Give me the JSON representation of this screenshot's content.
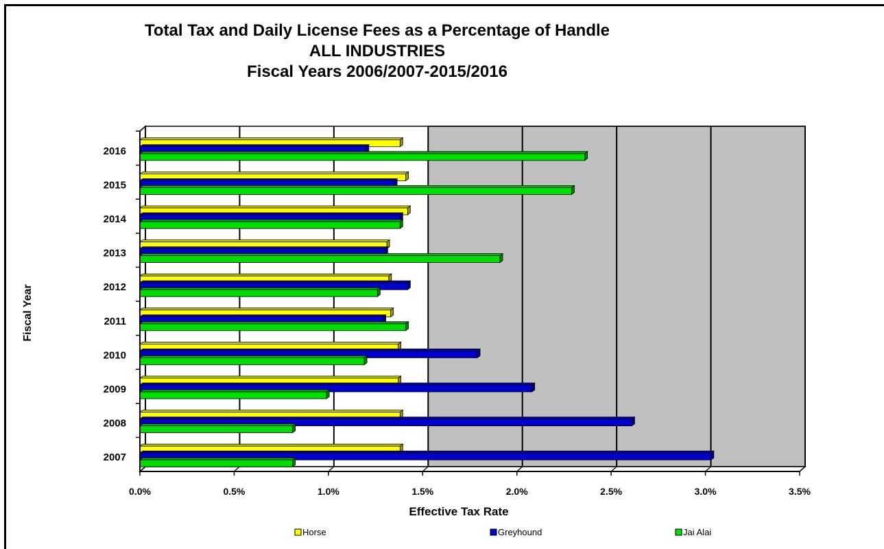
{
  "chart_data": {
    "type": "bar",
    "orientation": "horizontal",
    "style": "3d",
    "title": [
      "Total Tax and Daily License Fees as a Percentage of Handle",
      "ALL INDUSTRIES",
      "Fiscal Years 2006/2007-2015/2016"
    ],
    "xlabel": "Effective Tax Rate",
    "ylabel": "Fiscal Year",
    "xlim": [
      0,
      3.5
    ],
    "xticks": [
      "0.0%",
      "0.5%",
      "1.0%",
      "1.5%",
      "2.0%",
      "2.5%",
      "3.0%",
      "3.5%"
    ],
    "tick_values": [
      0,
      0.5,
      1.0,
      1.5,
      2.0,
      2.5,
      3.0,
      3.5
    ],
    "categories": [
      "2007",
      "2008",
      "2009",
      "2010",
      "2011",
      "2012",
      "2013",
      "2014",
      "2015",
      "2016"
    ],
    "series": [
      {
        "name": "Horse",
        "color": "#ffff00",
        "values": [
          1.38,
          1.38,
          1.37,
          1.37,
          1.33,
          1.32,
          1.31,
          1.42,
          1.41,
          1.38
        ]
      },
      {
        "name": "Greyhound",
        "color": "#0000cc",
        "values": [
          3.03,
          2.61,
          2.08,
          1.79,
          1.29,
          1.42,
          1.3,
          1.38,
          1.35,
          1.2
        ]
      },
      {
        "name": "Jai Alai",
        "color": "#00dd00",
        "values": [
          0.81,
          0.81,
          0.99,
          1.19,
          1.41,
          1.26,
          1.91,
          1.38,
          2.29,
          2.36
        ]
      }
    ],
    "grid": true,
    "grid_colors": {
      "left_band": "#ffffff",
      "right_band": "#c0c0c0"
    },
    "legend_position": "bottom"
  }
}
